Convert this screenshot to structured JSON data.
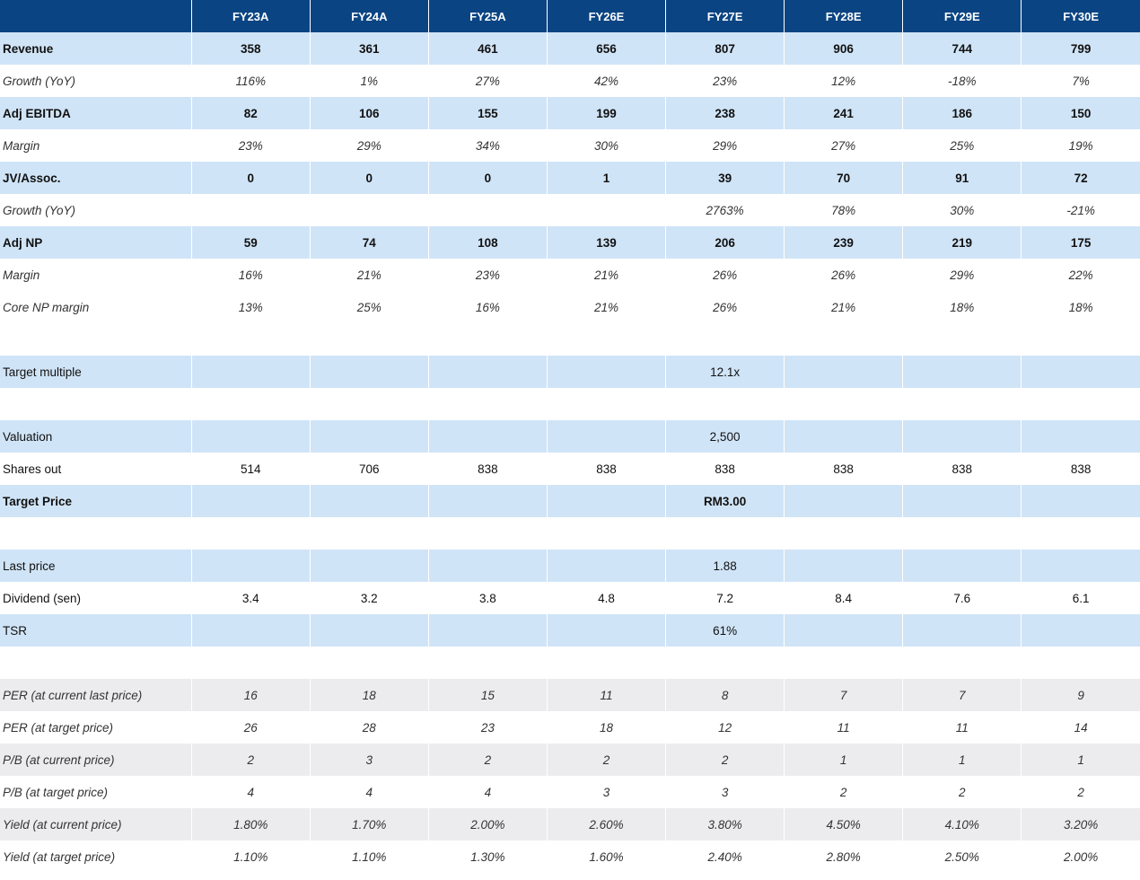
{
  "table": {
    "corner": "",
    "headers": [
      "FY23A",
      "FY24A",
      "FY25A",
      "FY26E",
      "FY27E",
      "FY28E",
      "FY29E",
      "FY30E"
    ],
    "rows": [
      {
        "label": "Revenue",
        "style": "shade-blue bold",
        "values": [
          "358",
          "361",
          "461",
          "656",
          "807",
          "906",
          "744",
          "799"
        ]
      },
      {
        "label": "Growth (YoY)",
        "style": "italic",
        "values": [
          "116%",
          "1%",
          "27%",
          "42%",
          "23%",
          "12%",
          "-18%",
          "7%"
        ]
      },
      {
        "label": "Adj EBITDA",
        "style": "shade-blue bold",
        "values": [
          "82",
          "106",
          "155",
          "199",
          "238",
          "241",
          "186",
          "150"
        ]
      },
      {
        "label": "Margin",
        "style": "italic",
        "values": [
          "23%",
          "29%",
          "34%",
          "30%",
          "29%",
          "27%",
          "25%",
          "19%"
        ]
      },
      {
        "label": "JV/Assoc.",
        "style": "shade-blue bold",
        "values": [
          "0",
          "0",
          "0",
          "1",
          "39",
          "70",
          "91",
          "72"
        ]
      },
      {
        "label": "Growth (YoY)",
        "style": "italic",
        "values": [
          "",
          "",
          "",
          "",
          "2763%",
          "78%",
          "30%",
          "-21%"
        ]
      },
      {
        "label": "Adj NP",
        "style": "shade-blue bold",
        "values": [
          "59",
          "74",
          "108",
          "139",
          "206",
          "239",
          "219",
          "175"
        ]
      },
      {
        "label": "Margin",
        "style": "italic",
        "values": [
          "16%",
          "21%",
          "23%",
          "21%",
          "26%",
          "26%",
          "29%",
          "22%"
        ]
      },
      {
        "label": "Core NP margin",
        "style": "italic",
        "values": [
          "13%",
          "25%",
          "16%",
          "21%",
          "26%",
          "21%",
          "18%",
          "18%"
        ]
      },
      {
        "label": "",
        "style": "",
        "values": [
          "",
          "",
          "",
          "",
          "",
          "",
          "",
          ""
        ]
      },
      {
        "label": "Target multiple",
        "style": "shade-blue",
        "values": [
          "",
          "",
          "",
          "",
          "12.1x",
          "",
          "",
          ""
        ]
      },
      {
        "label": "",
        "style": "",
        "values": [
          "",
          "",
          "",
          "",
          "",
          "",
          "",
          ""
        ]
      },
      {
        "label": "Valuation",
        "style": "shade-blue",
        "values": [
          "",
          "",
          "",
          "",
          "2,500",
          "",
          "",
          ""
        ]
      },
      {
        "label": "Shares out",
        "style": "",
        "values": [
          "514",
          "706",
          "838",
          "838",
          "838",
          "838",
          "838",
          "838"
        ]
      },
      {
        "label": "Target Price",
        "style": "shade-blue bold",
        "values": [
          "",
          "",
          "",
          "",
          "RM3.00",
          "",
          "",
          ""
        ]
      },
      {
        "label": "",
        "style": "",
        "values": [
          "",
          "",
          "",
          "",
          "",
          "",
          "",
          ""
        ]
      },
      {
        "label": "Last price",
        "style": "shade-blue",
        "values": [
          "",
          "",
          "",
          "",
          "1.88",
          "",
          "",
          ""
        ]
      },
      {
        "label": "Dividend (sen)",
        "style": "",
        "values": [
          "3.4",
          "3.2",
          "3.8",
          "4.8",
          "7.2",
          "8.4",
          "7.6",
          "6.1"
        ]
      },
      {
        "label": "TSR",
        "style": "shade-blue",
        "values": [
          "",
          "",
          "",
          "",
          "61%",
          "",
          "",
          ""
        ]
      },
      {
        "label": "",
        "style": "",
        "values": [
          "",
          "",
          "",
          "",
          "",
          "",
          "",
          ""
        ]
      },
      {
        "label": "PER (at current last price)",
        "style": "shade-gray italic",
        "values": [
          "16",
          "18",
          "15",
          "11",
          "8",
          "7",
          "7",
          "9"
        ]
      },
      {
        "label": "PER (at target price)",
        "style": "italic",
        "values": [
          "26",
          "28",
          "23",
          "18",
          "12",
          "11",
          "11",
          "14"
        ]
      },
      {
        "label": "P/B (at current price)",
        "style": "shade-gray italic",
        "values": [
          "2",
          "3",
          "2",
          "2",
          "2",
          "1",
          "1",
          "1"
        ]
      },
      {
        "label": "P/B (at target price)",
        "style": "italic",
        "values": [
          "4",
          "4",
          "4",
          "3",
          "3",
          "2",
          "2",
          "2"
        ]
      },
      {
        "label": "Yield (at current price)",
        "style": "shade-gray italic",
        "values": [
          "1.80%",
          "1.70%",
          "2.00%",
          "2.60%",
          "3.80%",
          "4.50%",
          "4.10%",
          "3.20%"
        ]
      },
      {
        "label": "Yield (at target price)",
        "style": "italic",
        "values": [
          "1.10%",
          "1.10%",
          "1.30%",
          "1.60%",
          "2.40%",
          "2.80%",
          "2.50%",
          "2.00%"
        ]
      }
    ]
  }
}
